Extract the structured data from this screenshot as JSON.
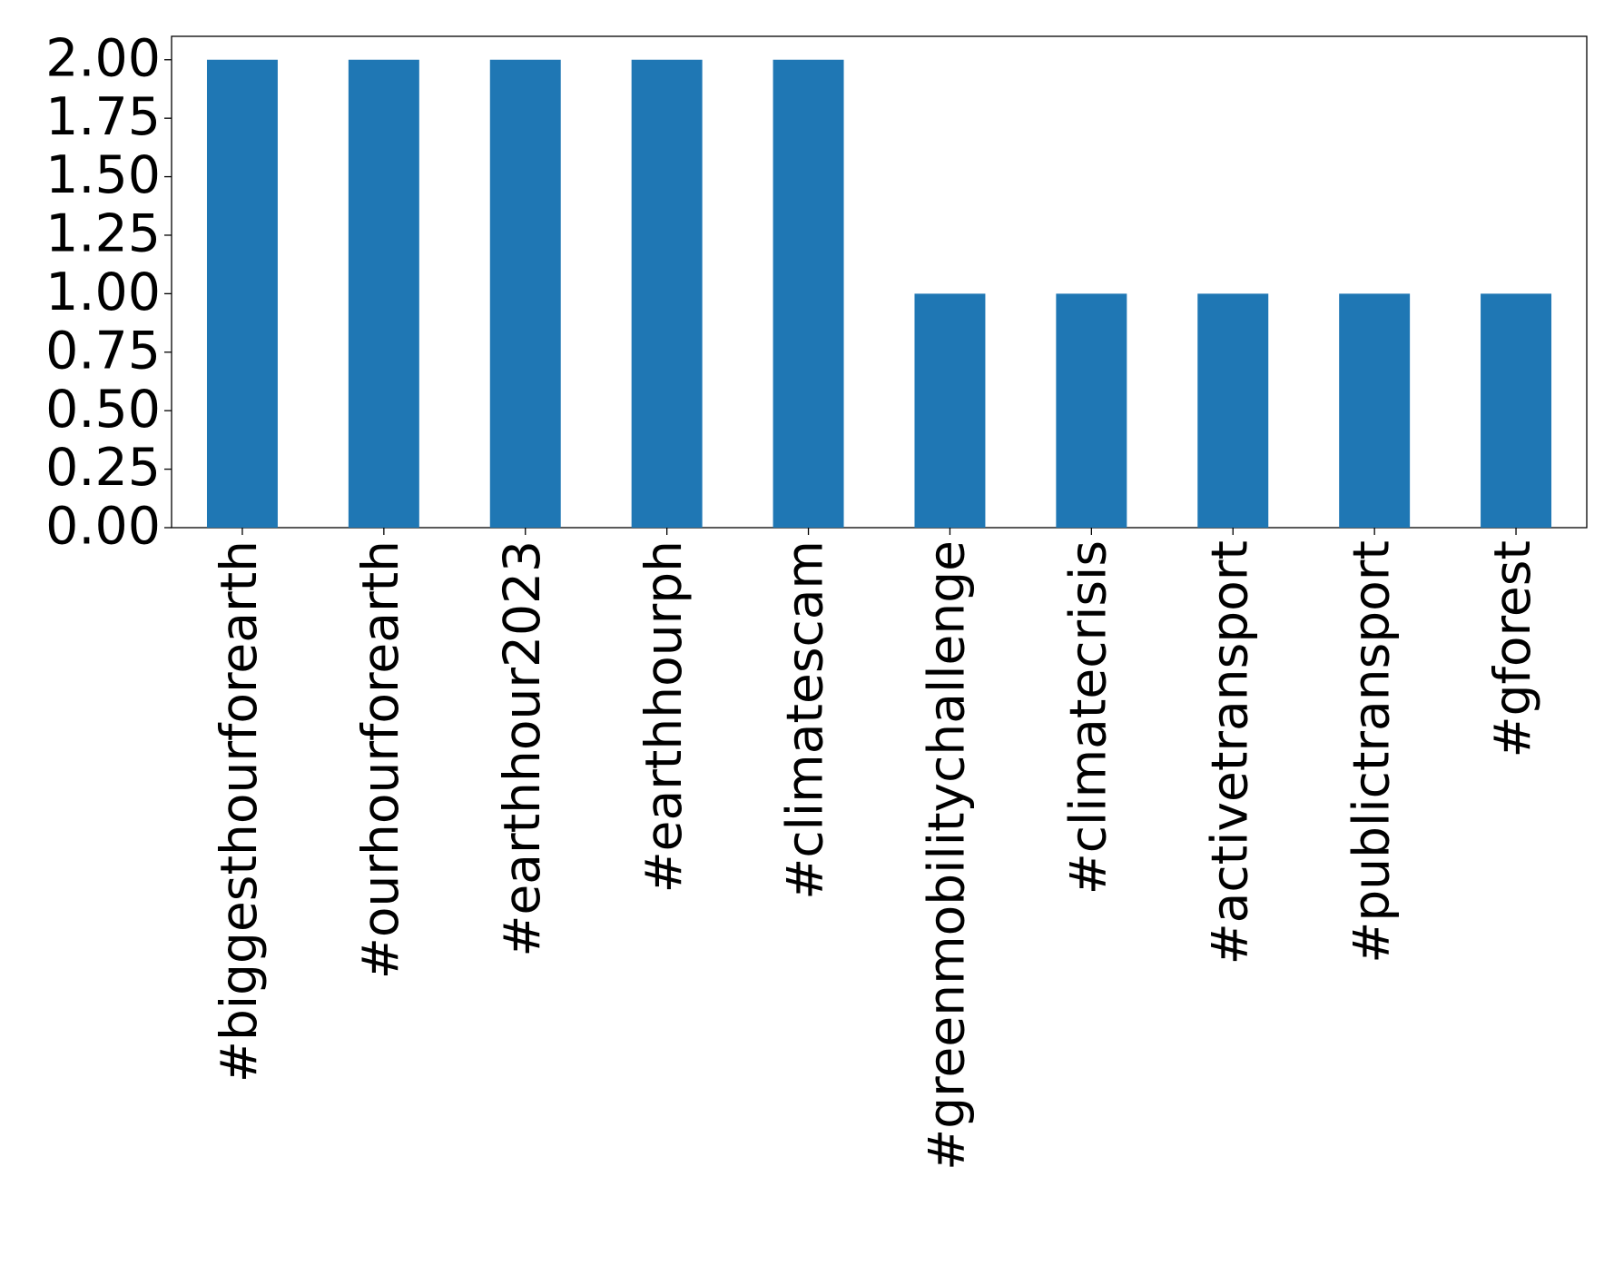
{
  "chart_data": {
    "type": "bar",
    "categories": [
      "#biggesthourforearth",
      "#ourhourforearth",
      "#earthhour2023",
      "#earthhourph",
      "#climatescam",
      "#greenmobilitychallenge",
      "#climatecrisis",
      "#activetransport",
      "#publictransport",
      "#gforest"
    ],
    "values": [
      2,
      2,
      2,
      2,
      2,
      1,
      1,
      1,
      1,
      1
    ],
    "color": "#1f77b4",
    "ylim": [
      0,
      2.1
    ],
    "yticks": [
      {
        "value": 0,
        "label": "0.00"
      },
      {
        "value": 0.25,
        "label": "0.25"
      },
      {
        "value": 0.5,
        "label": "0.50"
      },
      {
        "value": 0.75,
        "label": "0.75"
      },
      {
        "value": 1,
        "label": "1.00"
      },
      {
        "value": 1.25,
        "label": "1.25"
      },
      {
        "value": 1.5,
        "label": "1.50"
      },
      {
        "value": 1.75,
        "label": "1.75"
      },
      {
        "value": 2,
        "label": "2.00"
      }
    ],
    "grid": false
  }
}
